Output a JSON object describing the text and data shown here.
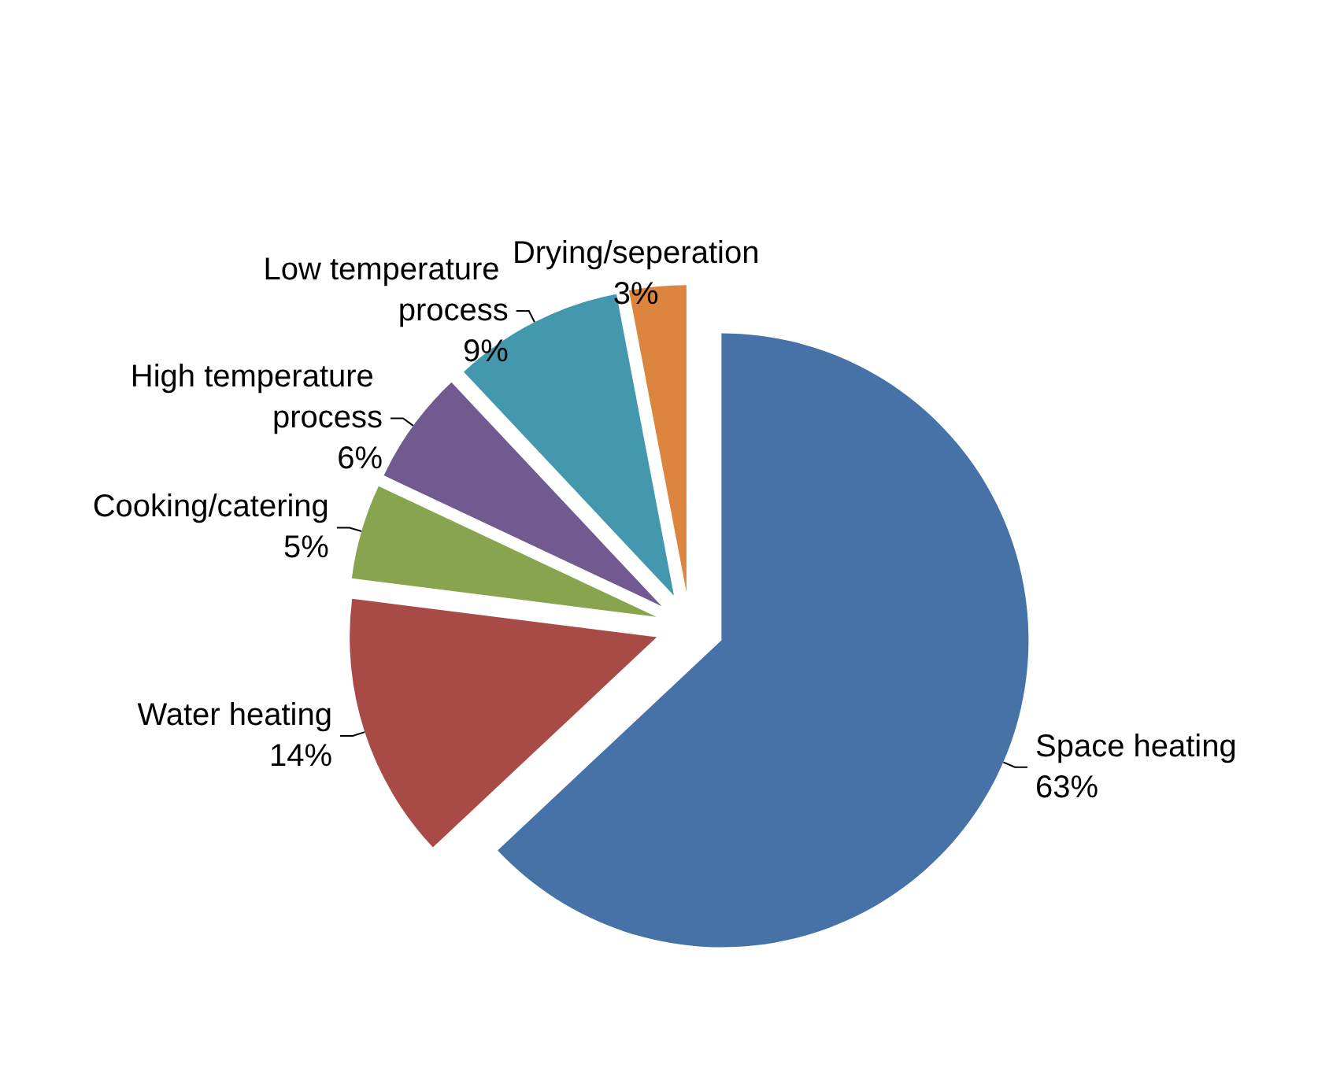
{
  "chart_data": {
    "type": "pie",
    "categories": [
      "Space heating",
      "Water heating",
      "Cooking/catering",
      "High temperature process",
      "Low temperature process",
      "Drying/seperation"
    ],
    "values": [
      63,
      14,
      5,
      6,
      9,
      3
    ],
    "colors": [
      "#4672a7",
      "#a84a45",
      "#88a44e",
      "#715a8f",
      "#4398ae",
      "#db853e"
    ],
    "value_labels": [
      "63%",
      "14%",
      "5%",
      "6%",
      "9%",
      "3%"
    ],
    "legend": false
  }
}
